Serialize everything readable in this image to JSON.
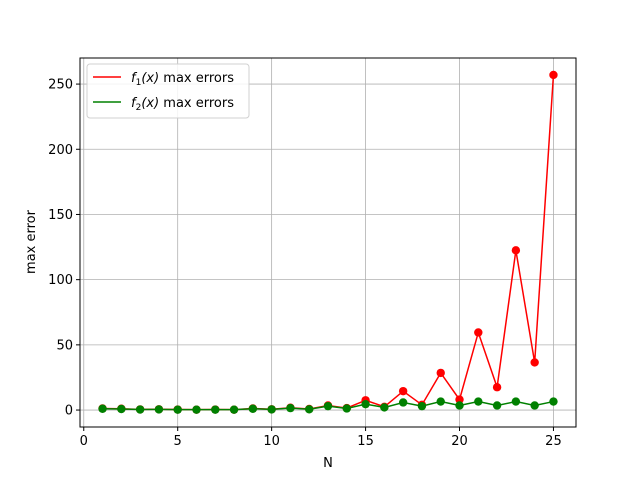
{
  "chart_data": {
    "type": "line",
    "xlabel": "N",
    "ylabel": "max error",
    "xlim": [
      -0.2,
      26.2
    ],
    "ylim": [
      -13,
      270
    ],
    "xticks": [
      0,
      5,
      10,
      15,
      20,
      25
    ],
    "yticks": [
      0,
      50,
      100,
      150,
      200,
      250
    ],
    "grid": true,
    "legend_position": "top-left",
    "x": [
      1,
      2,
      3,
      4,
      5,
      6,
      7,
      8,
      9,
      10,
      11,
      12,
      13,
      14,
      15,
      16,
      17,
      18,
      19,
      20,
      21,
      22,
      23,
      24,
      25
    ],
    "series": [
      {
        "name": "f₁(x) max errors",
        "legend_main": "f",
        "legend_sub": "1",
        "legend_arg": "(x)",
        "legend_rest": " max errors",
        "color": "#ff0000",
        "values": [
          1.2,
          1.0,
          0.5,
          0.6,
          0.4,
          0.3,
          0.4,
          0.3,
          1.2,
          0.6,
          1.8,
          0.8,
          3.5,
          1.5,
          7.5,
          2.5,
          14.5,
          4.0,
          28.5,
          8.0,
          59.5,
          17.5,
          122.5,
          36.5,
          257.0
        ]
      },
      {
        "name": "f₂(x) max errors",
        "legend_main": "f",
        "legend_sub": "2",
        "legend_arg": "(x)",
        "legend_rest": " max errors",
        "color": "#008000",
        "values": [
          1.0,
          0.8,
          0.4,
          0.5,
          0.3,
          0.3,
          0.3,
          0.3,
          1.0,
          0.5,
          1.5,
          0.6,
          3.0,
          1.2,
          4.5,
          2.0,
          5.8,
          3.0,
          6.5,
          3.5,
          6.5,
          3.5,
          6.5,
          3.5,
          6.5
        ]
      }
    ]
  }
}
